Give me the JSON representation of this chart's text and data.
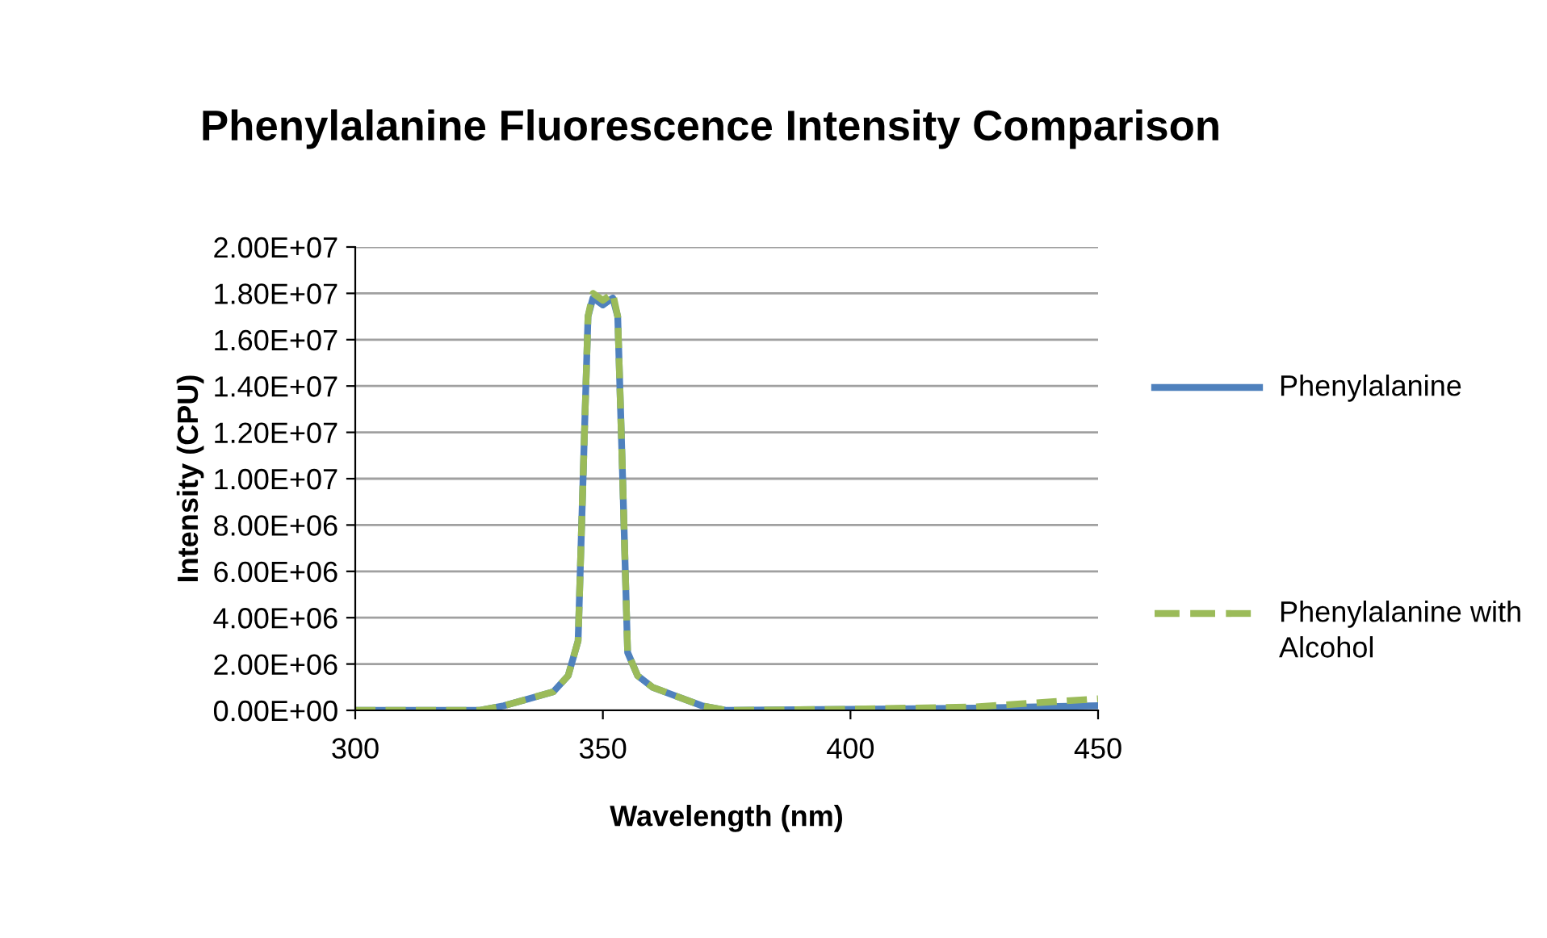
{
  "chart_data": {
    "type": "line",
    "title": "Phenylalanine Fluorescence Intensity Comparison",
    "xlabel": "Wavelength (nm)",
    "ylabel": "Intensity (CPU)",
    "xlim": [
      300,
      450
    ],
    "xticks": [
      300,
      350,
      400,
      450
    ],
    "ylim": [
      0,
      20000000
    ],
    "yticks": [
      {
        "value": 0,
        "label": "0.00E+00"
      },
      {
        "value": 2000000,
        "label": "2.00E+06"
      },
      {
        "value": 4000000,
        "label": "4.00E+06"
      },
      {
        "value": 6000000,
        "label": "6.00E+06"
      },
      {
        "value": 8000000,
        "label": "8.00E+06"
      },
      {
        "value": 10000000,
        "label": "1.00E+07"
      },
      {
        "value": 12000000,
        "label": "1.20E+07"
      },
      {
        "value": 14000000,
        "label": "1.40E+07"
      },
      {
        "value": 16000000,
        "label": "1.60E+07"
      },
      {
        "value": 18000000,
        "label": "1.80E+07"
      },
      {
        "value": 20000000,
        "label": "2.00E+07"
      }
    ],
    "grid": "y",
    "legend": "right",
    "marker": "none",
    "x": [
      300,
      325,
      330,
      335,
      340,
      343,
      345,
      346,
      347,
      348,
      350,
      352,
      353,
      354,
      355,
      357,
      360,
      365,
      370,
      375,
      400,
      425,
      450
    ],
    "series": [
      {
        "name": "Phenylalanine",
        "color": "#4f81bd",
        "line_style": "solid",
        "values": [
          0,
          0,
          200000,
          500000,
          800000,
          1500000,
          3000000,
          10000000,
          17000000,
          17800000,
          17500000,
          17800000,
          17000000,
          10000000,
          2500000,
          1500000,
          1000000,
          600000,
          200000,
          0,
          50000,
          100000,
          200000
        ]
      },
      {
        "name": "Phenylalanine with Alcohol",
        "color": "#9bbb59",
        "line_style": "dashed",
        "values": [
          0,
          0,
          200000,
          500000,
          800000,
          1500000,
          3000000,
          10000000,
          17000000,
          18000000,
          17700000,
          18000000,
          17000000,
          10000000,
          2500000,
          1500000,
          1000000,
          600000,
          200000,
          0,
          50000,
          150000,
          500000
        ]
      }
    ]
  }
}
